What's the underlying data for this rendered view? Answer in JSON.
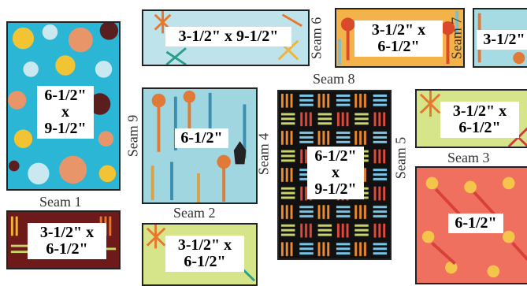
{
  "panels": [
    {
      "id": "A",
      "dim": [
        "6-1/2\"",
        "x",
        "9-1/2\""
      ],
      "fabric": "big-dots",
      "colors": {
        "bg": "#2bb6d6",
        "dots": [
          "#f2c434",
          "#e9956a",
          "#c9e8ef",
          "#5a1e1e"
        ]
      }
    },
    {
      "id": "B",
      "dim": [
        "3-1/2\" x 9-1/2\""
      ],
      "fabric": "starburst-aqua",
      "colors": {
        "bg": "#bfe3ea",
        "rays": [
          "#e8772e",
          "#2a9e8a",
          "#f0b437"
        ]
      }
    },
    {
      "id": "C",
      "dim": [
        "3-1/2\" x",
        "6-1/2\""
      ],
      "fabric": "utensils-orange",
      "colors": {
        "bg": "#f4b24a",
        "items": [
          "#d9492a",
          "#7bbfcf",
          "#f6e6b0"
        ]
      }
    },
    {
      "id": "D",
      "dim": [
        "3-1/2\""
      ],
      "fabric": "utensils-aqua",
      "colors": {
        "bg": "#a7dbe3",
        "items": [
          "#e07a36",
          "#3a8fb0"
        ]
      }
    },
    {
      "id": "E",
      "dim": [
        "6-1/2\""
      ],
      "fabric": "utensils-aqua",
      "colors": {
        "bg": "#9fd6e0",
        "items": [
          "#e07a36",
          "#3a8fb0",
          "#d8a24a"
        ]
      }
    },
    {
      "id": "F",
      "dim": [
        "6-1/2\"",
        "x",
        "9-1/2\""
      ],
      "fabric": "basketweave-black",
      "colors": {
        "bg": "#111111",
        "lines": [
          "#f08a2a",
          "#7ac7ea",
          "#c9d46a",
          "#e04a3a"
        ]
      }
    },
    {
      "id": "G",
      "dim": [
        "3-1/2\" x",
        "6-1/2\""
      ],
      "fabric": "starburst-lime",
      "colors": {
        "bg": "#d6e48a",
        "rays": [
          "#e8772e",
          "#d13a3a",
          "#f0b437"
        ]
      }
    },
    {
      "id": "H",
      "dim": [
        "6-1/2\""
      ],
      "fabric": "spoons-red",
      "colors": {
        "bg": "#f07060",
        "items": [
          "#f5c44a",
          "#d8403a"
        ]
      }
    },
    {
      "id": "I",
      "dim": [
        "3-1/2\" x",
        "6-1/2\""
      ],
      "fabric": "stripes-maroon",
      "colors": {
        "bg": "#6e1a1a",
        "lines": [
          "#f0b437",
          "#e8772e",
          "#c9d46a"
        ]
      }
    },
    {
      "id": "J",
      "dim": [
        "3-1/2\" x",
        "6-1/2\""
      ],
      "fabric": "starburst-lime",
      "colors": {
        "bg": "#d6e48a",
        "rays": [
          "#e8772e",
          "#2a9e8a",
          "#f0b437"
        ]
      }
    }
  ],
  "seams": {
    "s1": "Seam 1",
    "s2": "Seam 2",
    "s3": "Seam 3",
    "s4": "Seam 4",
    "s5": "Seam 5",
    "s6": "Seam 6",
    "s7": "Seam 7",
    "s8": "Seam 8",
    "s9": "Seam 9"
  }
}
